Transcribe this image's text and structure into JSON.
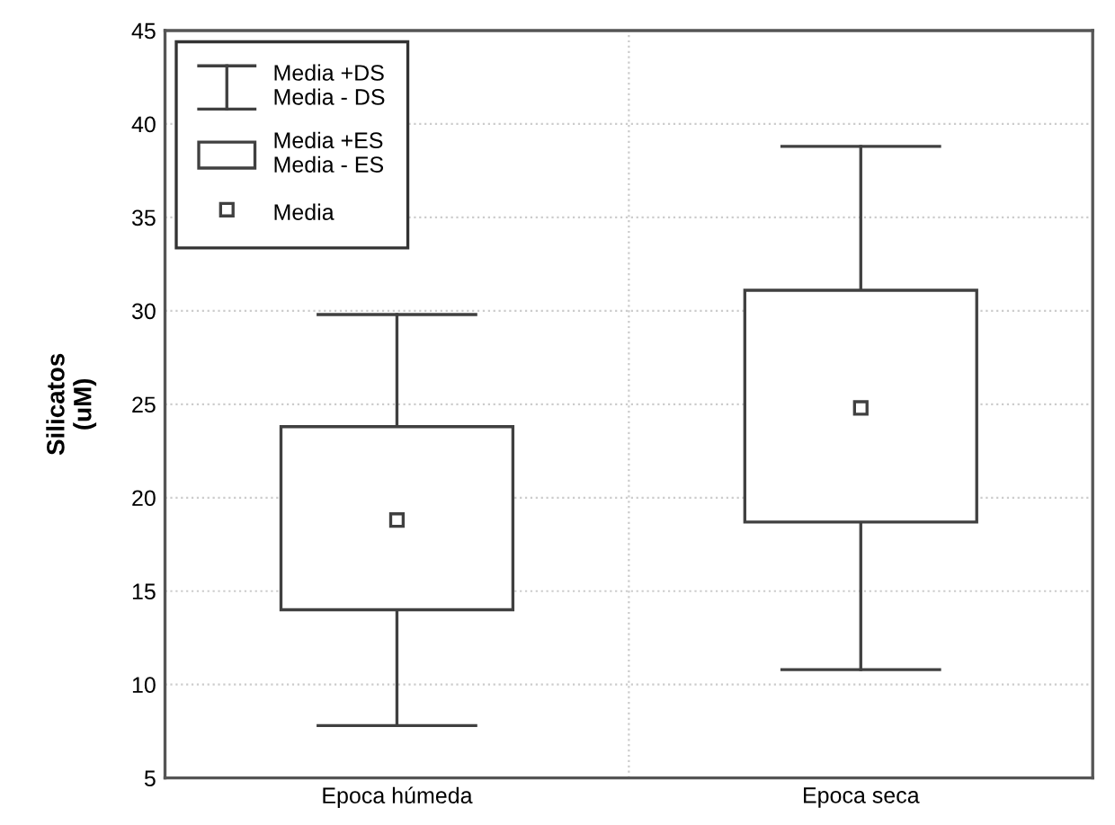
{
  "chart_data": {
    "type": "box",
    "ylabel": "Silicatos\n(uM)",
    "categories": [
      "Epoca húmeda",
      "Epoca seca"
    ],
    "annotations": [
      "Media +ES\nMedia - ES"
    ],
    "series": [
      {
        "name": "Media +DS\nMedia - DS",
        "color": "#404040",
        "boxes": [
          {
            "low": 7.8,
            "q1": 14.0,
            "q3": 23.8,
            "high": 29.8
          },
          {
            "low": 10.8,
            "q1": 18.7,
            "q3": 31.1,
            "high": 38.8
          }
        ]
      },
      {
        "name": "Media",
        "type": "scatter",
        "marker": "square",
        "color": "#404040",
        "values": [
          18.8,
          24.8
        ]
      }
    ],
    "ylim": [
      5,
      45
    ],
    "yticks": [
      5,
      10,
      15,
      20,
      25,
      30,
      35,
      40,
      45
    ],
    "grid": true,
    "legend": "top left"
  }
}
